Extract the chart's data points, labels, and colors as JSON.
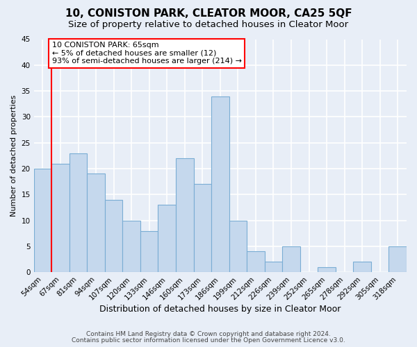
{
  "title": "10, CONISTON PARK, CLEATOR MOOR, CA25 5QF",
  "subtitle": "Size of property relative to detached houses in Cleator Moor",
  "xlabel": "Distribution of detached houses by size in Cleator Moor",
  "ylabel": "Number of detached properties",
  "bar_labels": [
    "54sqm",
    "67sqm",
    "81sqm",
    "94sqm",
    "107sqm",
    "120sqm",
    "133sqm",
    "146sqm",
    "160sqm",
    "173sqm",
    "186sqm",
    "199sqm",
    "212sqm",
    "226sqm",
    "239sqm",
    "252sqm",
    "265sqm",
    "278sqm",
    "292sqm",
    "305sqm",
    "318sqm"
  ],
  "bar_heights": [
    20,
    21,
    23,
    19,
    14,
    10,
    8,
    13,
    22,
    17,
    34,
    10,
    4,
    2,
    5,
    0,
    1,
    0,
    2,
    0,
    5
  ],
  "bar_color": "#c5d8ed",
  "bar_edge_color": "#7aadd4",
  "annotation_box": {
    "text_line1": "10 CONISTON PARK: 65sqm",
    "text_line2": "← 5% of detached houses are smaller (12)",
    "text_line3": "93% of semi-detached houses are larger (214) →",
    "box_color": "white",
    "box_edge_color": "red"
  },
  "ylim": [
    0,
    45
  ],
  "yticks": [
    0,
    5,
    10,
    15,
    20,
    25,
    30,
    35,
    40,
    45
  ],
  "footer_line1": "Contains HM Land Registry data © Crown copyright and database right 2024.",
  "footer_line2": "Contains public sector information licensed under the Open Government Licence v3.0.",
  "background_color": "#e8eef7",
  "plot_background": "#e8eef7",
  "grid_color": "white",
  "title_fontsize": 11,
  "subtitle_fontsize": 9.5,
  "xlabel_fontsize": 9,
  "ylabel_fontsize": 8,
  "tick_fontsize": 7.5,
  "footer_fontsize": 6.5,
  "annotation_fontsize": 8
}
